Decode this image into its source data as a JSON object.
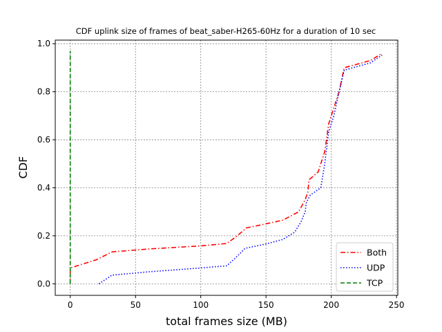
{
  "chart_data": {
    "type": "line",
    "title": "CDF uplink size of frames of beat_saber-H265-60Hz for a duration of 10 sec",
    "xlabel": "total frames size (MB)",
    "ylabel": "CDF",
    "xlim": [
      -11.5,
      251
    ],
    "ylim": [
      -0.048,
      1.015
    ],
    "xticks": [
      0,
      50,
      100,
      150,
      200,
      250
    ],
    "yticks": [
      0.0,
      0.2,
      0.4,
      0.6,
      0.8,
      1.0
    ],
    "xtick_labels": [
      "0",
      "50",
      "100",
      "150",
      "200",
      "250"
    ],
    "ytick_labels": [
      "0.0",
      "0.2",
      "0.4",
      "0.6",
      "0.8",
      "1.0"
    ],
    "grid": true,
    "legend_position": "lower-right",
    "series": [
      {
        "name": "Both",
        "color": "#ff0000",
        "style": "dashdot",
        "x": [
          0,
          0,
          20,
          32,
          60,
          100,
          120,
          128,
          135,
          150,
          163,
          175,
          180,
          182,
          183,
          190,
          195,
          198,
          202,
          206,
          210,
          230,
          239
        ],
        "y": [
          0.0,
          0.066,
          0.1,
          0.133,
          0.145,
          0.158,
          0.168,
          0.2,
          0.233,
          0.25,
          0.265,
          0.3,
          0.35,
          0.38,
          0.433,
          0.466,
          0.55,
          0.666,
          0.733,
          0.8,
          0.9,
          0.93,
          0.96
        ]
      },
      {
        "name": "UDP",
        "color": "#0000ff",
        "style": "dotted",
        "x": [
          22,
          32,
          60,
          100,
          120,
          127,
          134,
          150,
          163,
          172,
          177,
          180,
          181,
          184,
          192,
          195,
          198,
          202,
          206,
          210,
          230,
          239
        ],
        "y": [
          0.0,
          0.036,
          0.05,
          0.066,
          0.075,
          0.11,
          0.148,
          0.166,
          0.185,
          0.215,
          0.26,
          0.3,
          0.34,
          0.37,
          0.4,
          0.5,
          0.633,
          0.7,
          0.8,
          0.89,
          0.92,
          0.953
        ]
      },
      {
        "name": "TCP",
        "color": "#008000",
        "style": "dashed",
        "x": [
          0,
          0
        ],
        "y": [
          0.0,
          0.97
        ]
      }
    ]
  }
}
